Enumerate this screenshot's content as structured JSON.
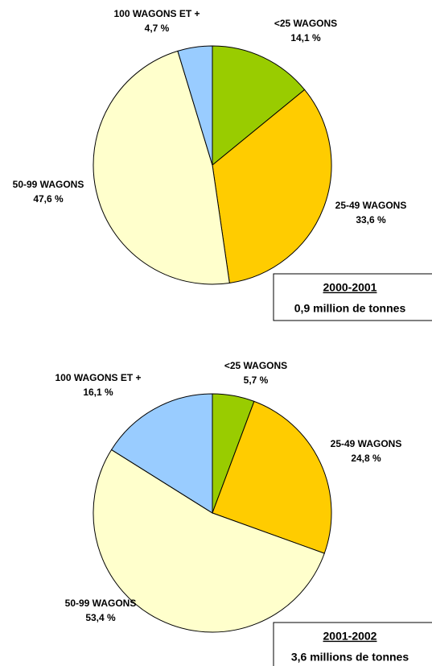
{
  "chart_data": [
    {
      "type": "pie",
      "title": "2000-2001",
      "subtitle": "0,9 million de tonnes",
      "categories": [
        "<25 WAGONS",
        "25-49 WAGONS",
        "50-99 WAGONS",
        "100 WAGONS ET +"
      ],
      "values": [
        14.1,
        33.6,
        47.6,
        4.7
      ],
      "value_labels": [
        "14,1 %",
        "33,6 %",
        "47,6 %",
        "4,7 %"
      ],
      "colors": [
        "#99cc00",
        "#ffcc00",
        "#ffffcc",
        "#99ccff"
      ]
    },
    {
      "type": "pie",
      "title": "2001-2002",
      "subtitle": "3,6 millions de tonnes",
      "categories": [
        "<25 WAGONS",
        "25-49 WAGONS",
        "50-99 WAGONS",
        "100 WAGONS ET +"
      ],
      "values": [
        5.7,
        24.8,
        53.4,
        16.1
      ],
      "value_labels": [
        "5,7 %",
        "24,8 %",
        "53,4 %",
        "16,1 %"
      ],
      "colors": [
        "#99cc00",
        "#ffcc00",
        "#ffffcc",
        "#99ccff"
      ]
    }
  ]
}
